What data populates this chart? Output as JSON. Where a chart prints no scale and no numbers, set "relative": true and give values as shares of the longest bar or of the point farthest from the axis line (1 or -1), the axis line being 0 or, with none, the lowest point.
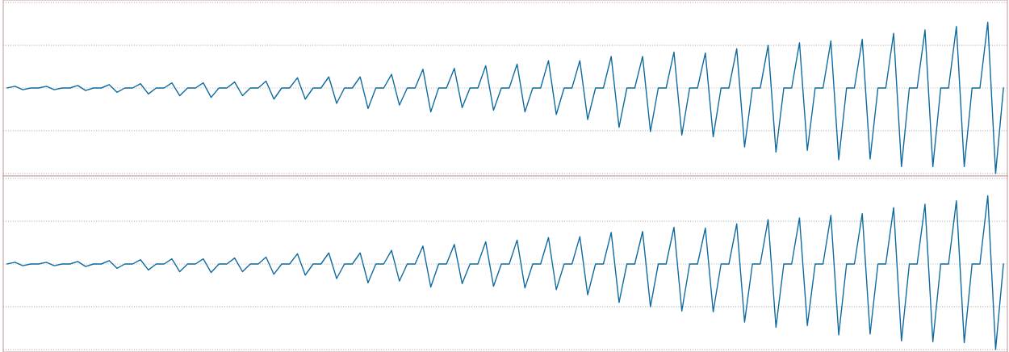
{
  "chart_data": [
    {
      "type": "line",
      "relative": true,
      "categories": [
        null,
        null,
        null,
        null,
        null,
        null,
        null,
        null,
        null,
        null,
        null,
        null,
        null,
        null,
        null,
        null,
        null,
        null,
        null,
        null,
        null,
        null,
        null,
        null,
        null,
        null,
        null,
        null,
        null,
        null,
        null,
        null,
        null,
        null,
        null,
        null,
        null,
        null,
        null,
        null,
        null,
        null,
        null,
        null,
        null,
        null,
        null,
        null,
        null,
        null,
        null,
        null,
        null,
        null,
        null,
        null,
        null,
        null,
        null,
        null,
        null,
        null,
        null,
        null,
        null,
        null,
        null,
        null,
        null,
        null,
        null,
        null,
        null,
        null,
        null,
        null,
        null,
        null,
        null,
        null,
        null,
        null,
        null,
        null,
        null,
        null,
        null,
        null,
        null,
        null,
        null,
        null,
        null,
        null,
        null,
        null,
        null,
        null,
        null,
        null,
        null,
        null,
        null,
        null,
        null,
        null,
        null,
        null,
        null,
        null,
        null,
        null,
        null,
        null,
        null,
        null,
        null,
        null,
        null,
        null,
        null,
        null,
        null,
        null,
        null,
        null,
        null,
        null
      ],
      "series": [
        {
          "color": "#0f6aa0",
          "values": [
            0,
            0.02,
            -0.02,
            0,
            0,
            0.02,
            -0.02,
            0,
            0,
            0.03,
            -0.03,
            0,
            0,
            0.04,
            -0.05,
            0,
            0,
            0.05,
            -0.07,
            0,
            0,
            0.06,
            -0.09,
            0,
            0,
            0.06,
            -0.11,
            0,
            0,
            0.07,
            -0.09,
            0,
            0,
            0.08,
            -0.13,
            0,
            0,
            0.12,
            -0.13,
            0,
            0,
            0.13,
            -0.18,
            0,
            0,
            0.13,
            -0.24,
            0,
            0,
            0.16,
            -0.2,
            0,
            0,
            0.22,
            -0.28,
            0,
            0,
            0.23,
            -0.23,
            0,
            0,
            0.26,
            -0.26,
            0,
            0,
            0.28,
            -0.28,
            0,
            0,
            0.32,
            -0.31,
            0,
            0,
            0.32,
            -0.37,
            0,
            0,
            0.37,
            -0.46,
            0,
            0,
            0.37,
            -0.51,
            0,
            0,
            0.42,
            -0.55,
            0,
            0,
            0.41,
            -0.57,
            0,
            0,
            0.46,
            -0.69,
            0,
            0,
            0.5,
            -0.75,
            0,
            0,
            0.53,
            -0.73,
            0,
            0,
            0.55,
            -0.84,
            0,
            0,
            0.57,
            -0.83,
            0,
            0,
            0.64,
            -0.92,
            0,
            0,
            0.68,
            -0.92,
            0,
            0,
            0.72,
            -0.92,
            0,
            0,
            0.77,
            -1,
            0
          ]
        }
      ],
      "grid": "y",
      "legend": false
    },
    {
      "type": "line",
      "relative": true,
      "categories": [
        null,
        null,
        null,
        null,
        null,
        null,
        null,
        null,
        null,
        null,
        null,
        null,
        null,
        null,
        null,
        null,
        null,
        null,
        null,
        null,
        null,
        null,
        null,
        null,
        null,
        null,
        null,
        null,
        null,
        null,
        null,
        null,
        null,
        null,
        null,
        null,
        null,
        null,
        null,
        null,
        null,
        null,
        null,
        null,
        null,
        null,
        null,
        null,
        null,
        null,
        null,
        null,
        null,
        null,
        null,
        null,
        null,
        null,
        null,
        null,
        null,
        null,
        null,
        null,
        null,
        null,
        null,
        null,
        null,
        null,
        null,
        null,
        null,
        null,
        null,
        null,
        null,
        null,
        null,
        null,
        null,
        null,
        null,
        null,
        null,
        null,
        null,
        null,
        null,
        null,
        null,
        null,
        null,
        null,
        null,
        null,
        null,
        null,
        null,
        null,
        null,
        null,
        null,
        null,
        null,
        null,
        null,
        null,
        null,
        null,
        null,
        null,
        null,
        null,
        null,
        null,
        null,
        null,
        null,
        null,
        null,
        null,
        null,
        null,
        null,
        null,
        null,
        null
      ],
      "series": [
        {
          "color": "#0f6aa0",
          "values": [
            0,
            0.02,
            -0.02,
            0,
            0,
            0.02,
            -0.02,
            0,
            0,
            0.03,
            -0.03,
            0,
            0,
            0.04,
            -0.05,
            0,
            0,
            0.05,
            -0.07,
            0,
            0,
            0.06,
            -0.09,
            0,
            0,
            0.06,
            -0.1,
            0,
            0,
            0.07,
            -0.09,
            0,
            0,
            0.08,
            -0.12,
            0,
            0,
            0.12,
            -0.13,
            0,
            0,
            0.13,
            -0.17,
            0,
            0,
            0.13,
            -0.22,
            0,
            0,
            0.16,
            -0.2,
            0,
            0,
            0.21,
            -0.27,
            0,
            0,
            0.23,
            -0.23,
            0,
            0,
            0.26,
            -0.26,
            0,
            0,
            0.28,
            -0.28,
            0,
            0,
            0.31,
            -0.3,
            0,
            0,
            0.32,
            -0.36,
            0,
            0,
            0.37,
            -0.45,
            0,
            0,
            0.38,
            -0.5,
            0,
            0,
            0.43,
            -0.55,
            0,
            0,
            0.42,
            -0.56,
            0,
            0,
            0.47,
            -0.68,
            0,
            0,
            0.52,
            -0.74,
            0,
            0,
            0.54,
            -0.72,
            0,
            0,
            0.57,
            -0.83,
            0,
            0,
            0.59,
            -0.82,
            0,
            0,
            0.66,
            -0.9,
            0,
            0,
            0.7,
            -0.91,
            0,
            0,
            0.74,
            -0.92,
            0,
            0,
            0.8,
            -1,
            0
          ]
        }
      ],
      "grid": "y",
      "legend": false
    }
  ]
}
